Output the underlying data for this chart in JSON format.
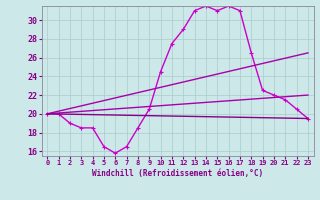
{
  "xlabel": "Windchill (Refroidissement éolien,°C)",
  "background_color": "#cce8e8",
  "grid_color": "#aacccc",
  "xlim": [
    -0.5,
    23.5
  ],
  "ylim": [
    15.5,
    31.5
  ],
  "yticks": [
    16,
    18,
    20,
    22,
    24,
    26,
    28,
    30
  ],
  "xticks": [
    0,
    1,
    2,
    3,
    4,
    5,
    6,
    7,
    8,
    9,
    10,
    11,
    12,
    13,
    14,
    15,
    16,
    17,
    18,
    19,
    20,
    21,
    22,
    23
  ],
  "series": [
    {
      "x": [
        0,
        1,
        2,
        3,
        4,
        5,
        6,
        7,
        8,
        9,
        10,
        11,
        12,
        13,
        14,
        15,
        16,
        17,
        18,
        19,
        20,
        21,
        22,
        23
      ],
      "y": [
        20,
        20,
        19,
        18.5,
        18.5,
        16.5,
        15.8,
        16.5,
        18.5,
        20.5,
        24.5,
        27.5,
        29,
        31,
        31.5,
        31,
        31.5,
        31,
        26.5,
        22.5,
        22,
        21.5,
        20.5,
        19.5
      ],
      "color": "#cc00cc",
      "lw": 1.0,
      "marker": "+"
    },
    {
      "x": [
        0,
        23
      ],
      "y": [
        20,
        26.5
      ],
      "color": "#aa00aa",
      "lw": 1.0,
      "marker": null
    },
    {
      "x": [
        0,
        23
      ],
      "y": [
        20,
        22.0
      ],
      "color": "#aa00aa",
      "lw": 1.0,
      "marker": null
    },
    {
      "x": [
        0,
        23
      ],
      "y": [
        20,
        19.5
      ],
      "color": "#880088",
      "lw": 1.0,
      "marker": null
    }
  ]
}
